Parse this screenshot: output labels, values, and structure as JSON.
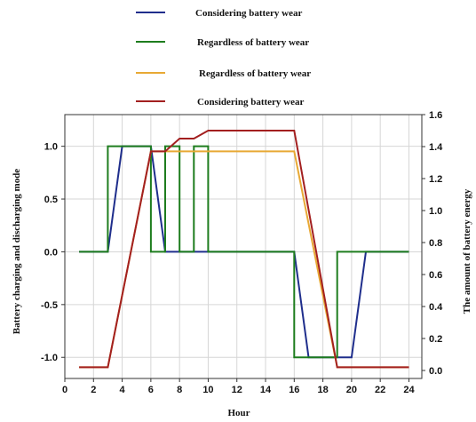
{
  "chart_data": {
    "type": "line",
    "xlabel": "Hour",
    "ylabel_left": "Battery charging and discharging mode",
    "ylabel_right": "The amount of battery energy",
    "x_ticks": [
      0,
      2,
      4,
      6,
      8,
      10,
      12,
      14,
      16,
      18,
      20,
      22,
      24
    ],
    "x_tick_labels": [
      "0",
      "2",
      "4",
      "6",
      "8",
      "10",
      "12",
      "14",
      "16",
      "18",
      "20",
      "22",
      "24"
    ],
    "xlim": [
      0,
      24.9
    ],
    "y_left_ticks": [
      -1.0,
      -0.5,
      0.0,
      0.5,
      1.0
    ],
    "y_left_tick_labels": [
      "-1.0",
      "-0.5",
      "0.0",
      "0.5",
      "1.0"
    ],
    "ylim_left": [
      -1.2,
      1.3
    ],
    "y_right_ticks": [
      0.0,
      0.2,
      0.4,
      0.6,
      0.8,
      1.0,
      1.2,
      1.4,
      1.6
    ],
    "y_right_tick_labels": [
      "0.0",
      "0.2",
      "0.4",
      "0.6",
      "0.8",
      "1.0",
      "1.2",
      "1.4",
      "1.6"
    ],
    "ylim_right": [
      -0.05,
      1.6
    ],
    "grid": true,
    "legend_position": "top-center",
    "series": [
      {
        "name": "Considering battery wear",
        "axis": "left",
        "color": "#1f2e8c",
        "x": [
          1,
          3,
          4,
          6,
          7,
          9,
          10,
          16,
          17,
          20,
          21,
          24
        ],
        "y": [
          0,
          0,
          1,
          1,
          0,
          0,
          0,
          0,
          -1,
          -1,
          0,
          0
        ]
      },
      {
        "name": "Regardless of battery wear",
        "axis": "left",
        "color": "#1e7d1e",
        "x": [
          1,
          3,
          3,
          6,
          6,
          7,
          7,
          8,
          8,
          9,
          9,
          10,
          10,
          16,
          16,
          19,
          19,
          24
        ],
        "y": [
          0,
          0,
          1,
          1,
          0,
          0,
          1,
          1,
          0,
          0,
          1,
          1,
          0,
          0,
          -1,
          -1,
          0,
          0
        ]
      },
      {
        "name": "Regardless of battery wear",
        "axis": "right",
        "color": "#e8a935",
        "x": [
          1,
          3,
          6,
          16,
          19,
          24
        ],
        "y": [
          0.02,
          0.02,
          1.37,
          1.37,
          0.02,
          0.02
        ]
      },
      {
        "name": "Considering battery wear",
        "axis": "right",
        "color": "#a32020",
        "x": [
          1,
          3,
          6,
          7,
          8,
          9,
          10,
          16,
          19,
          24
        ],
        "y": [
          0.02,
          0.02,
          1.37,
          1.37,
          1.45,
          1.45,
          1.5,
          1.5,
          0.02,
          0.02
        ]
      }
    ]
  }
}
